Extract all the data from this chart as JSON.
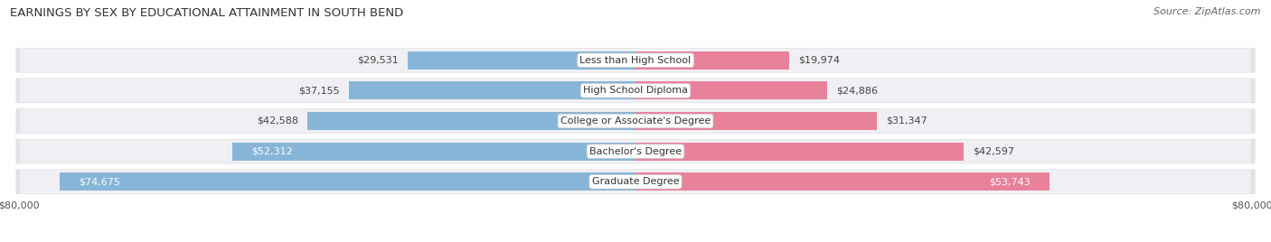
{
  "title": "EARNINGS BY SEX BY EDUCATIONAL ATTAINMENT IN SOUTH BEND",
  "source": "Source: ZipAtlas.com",
  "categories": [
    "Less than High School",
    "High School Diploma",
    "College or Associate's Degree",
    "Bachelor's Degree",
    "Graduate Degree"
  ],
  "male_values": [
    29531,
    37155,
    42588,
    52312,
    74675
  ],
  "female_values": [
    19974,
    24886,
    31347,
    42597,
    53743
  ],
  "male_color": "#87b5d8",
  "female_color": "#e8829b",
  "row_bg_color": "#e2e2e6",
  "row_inner_color": "#f0f0f4",
  "max_value": 80000,
  "title_fontsize": 9.5,
  "source_fontsize": 8,
  "label_fontsize": 8,
  "category_fontsize": 8,
  "axis_fontsize": 8,
  "legend_fontsize": 8.5,
  "background_color": "#ffffff",
  "label_color_outside": "#444444",
  "label_color_inside": "#ffffff"
}
